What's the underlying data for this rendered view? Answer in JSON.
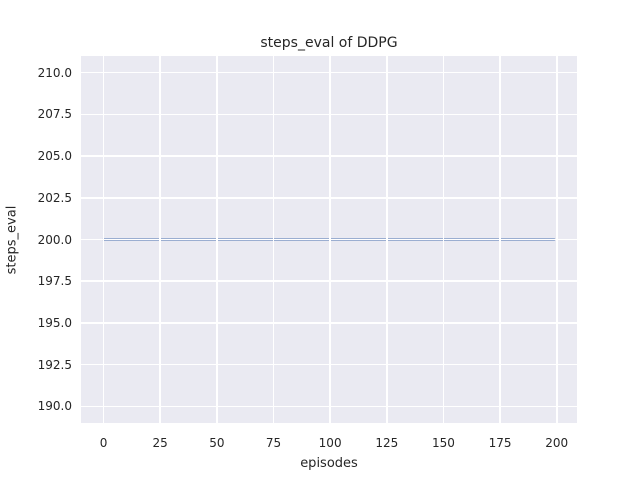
{
  "chart_data": {
    "type": "line",
    "title": "steps_eval of DDPG",
    "xlabel": "episodes",
    "ylabel": "steps_eval",
    "xlim": [
      -9.95,
      208.95
    ],
    "ylim": [
      189.0,
      211.0
    ],
    "xticks": [
      0,
      25,
      50,
      75,
      100,
      125,
      150,
      175,
      200
    ],
    "xtick_labels": [
      "0",
      "25",
      "50",
      "75",
      "100",
      "125",
      "150",
      "175",
      "200"
    ],
    "yticks": [
      190.0,
      192.5,
      195.0,
      197.5,
      200.0,
      202.5,
      205.0,
      207.5,
      210.0
    ],
    "ytick_labels": [
      "190.0",
      "192.5",
      "195.0",
      "197.5",
      "200.0",
      "202.5",
      "205.0",
      "207.5",
      "210.0"
    ],
    "grid": true,
    "legend_position": "none",
    "series": [
      {
        "name": "steps_eval",
        "color": "#4c72b0",
        "x": [
          0,
          199
        ],
        "y": [
          200,
          200
        ]
      }
    ],
    "style": {
      "figure_bg": "#ffffff",
      "axes_bg": "#eaeaf2",
      "grid_color": "#ffffff",
      "text_color": "#262626"
    }
  }
}
